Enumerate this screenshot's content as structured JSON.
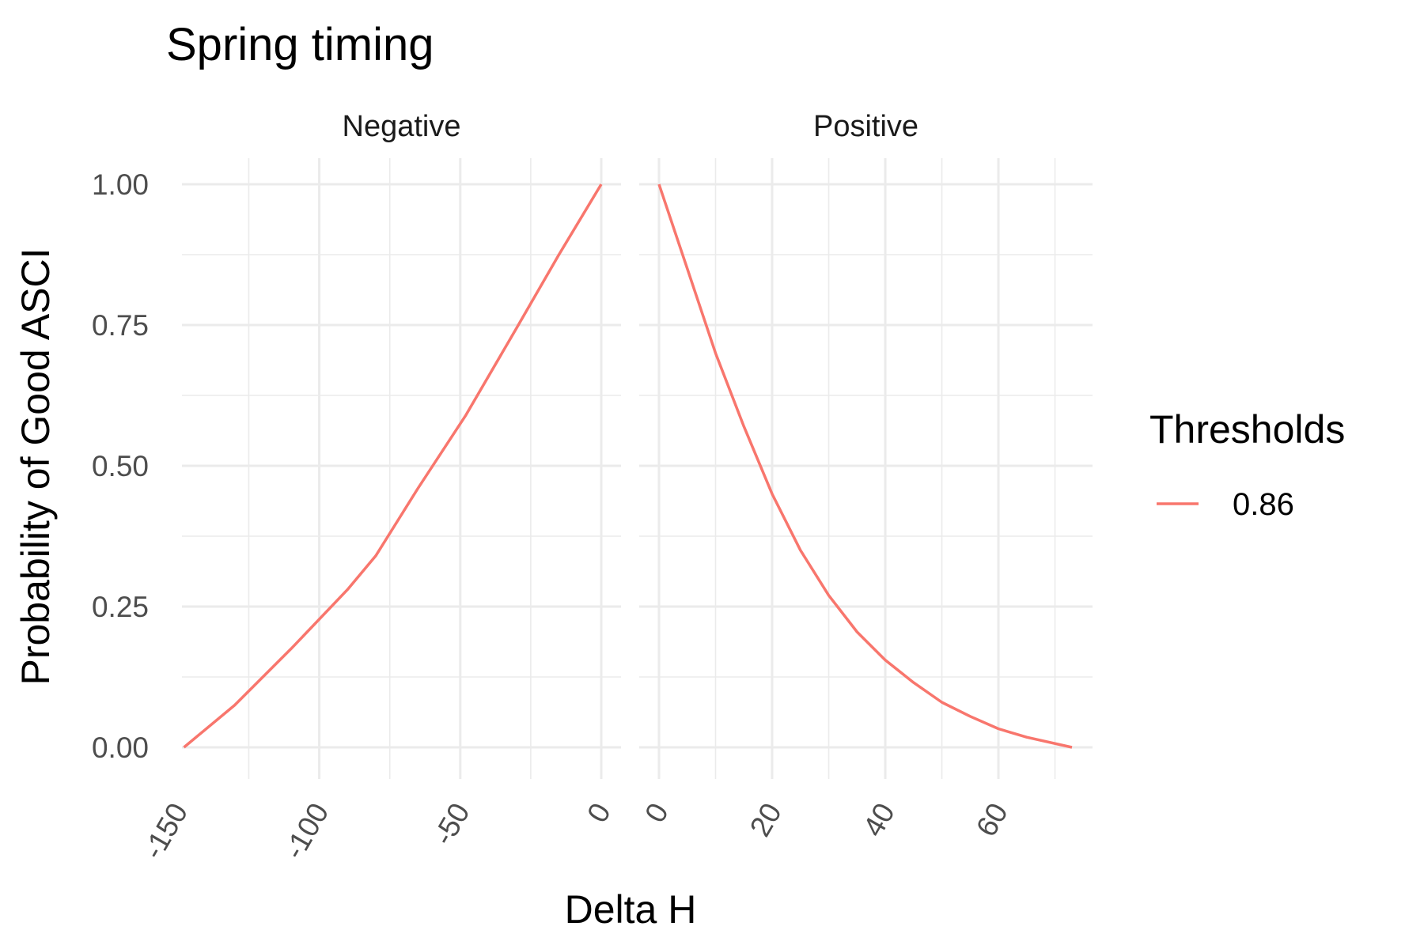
{
  "chart_data": {
    "type": "line",
    "title": "Spring timing",
    "xlabel": "Delta H",
    "ylabel": "Probability of Good ASCI",
    "grid": true,
    "legend": {
      "title": "Thresholds",
      "placement": "right",
      "entries": [
        {
          "label": "0.86",
          "color": "#F8766D"
        }
      ]
    },
    "ylim": [
      0,
      1
    ],
    "yticks": [
      0,
      0.25,
      0.5,
      0.75,
      1.0
    ],
    "ytick_labels": [
      "0.00",
      "0.25",
      "0.50",
      "0.75",
      "1.00"
    ],
    "panels": [
      {
        "strip": "Negative",
        "xlim": [
          -148,
          0
        ],
        "xticks": [
          -150,
          -100,
          -50,
          0
        ],
        "xtick_labels": [
          "-150",
          "-100",
          "-50",
          "0"
        ],
        "series": [
          {
            "name": "0.86",
            "x": [
              -148,
              -130,
              -110,
              -90,
              -80,
              -65,
              -48,
              -30,
              -15,
              0
            ],
            "y": [
              0.0,
              0.075,
              0.175,
              0.28,
              0.34,
              0.46,
              0.59,
              0.745,
              0.875,
              1.0
            ]
          }
        ]
      },
      {
        "strip": "Positive",
        "xlim": [
          0,
          73
        ],
        "xticks": [
          0,
          20,
          40,
          60
        ],
        "xtick_labels": [
          "0",
          "20",
          "40",
          "60"
        ],
        "series": [
          {
            "name": "0.86",
            "x": [
              0,
              5,
              10,
              15,
              20,
              25,
              30,
              35,
              40,
              45,
              50,
              55,
              60,
              65,
              73
            ],
            "y": [
              1.0,
              0.85,
              0.7,
              0.57,
              0.45,
              0.35,
              0.27,
              0.205,
              0.155,
              0.115,
              0.08,
              0.055,
              0.033,
              0.018,
              0.0
            ]
          }
        ]
      }
    ]
  }
}
